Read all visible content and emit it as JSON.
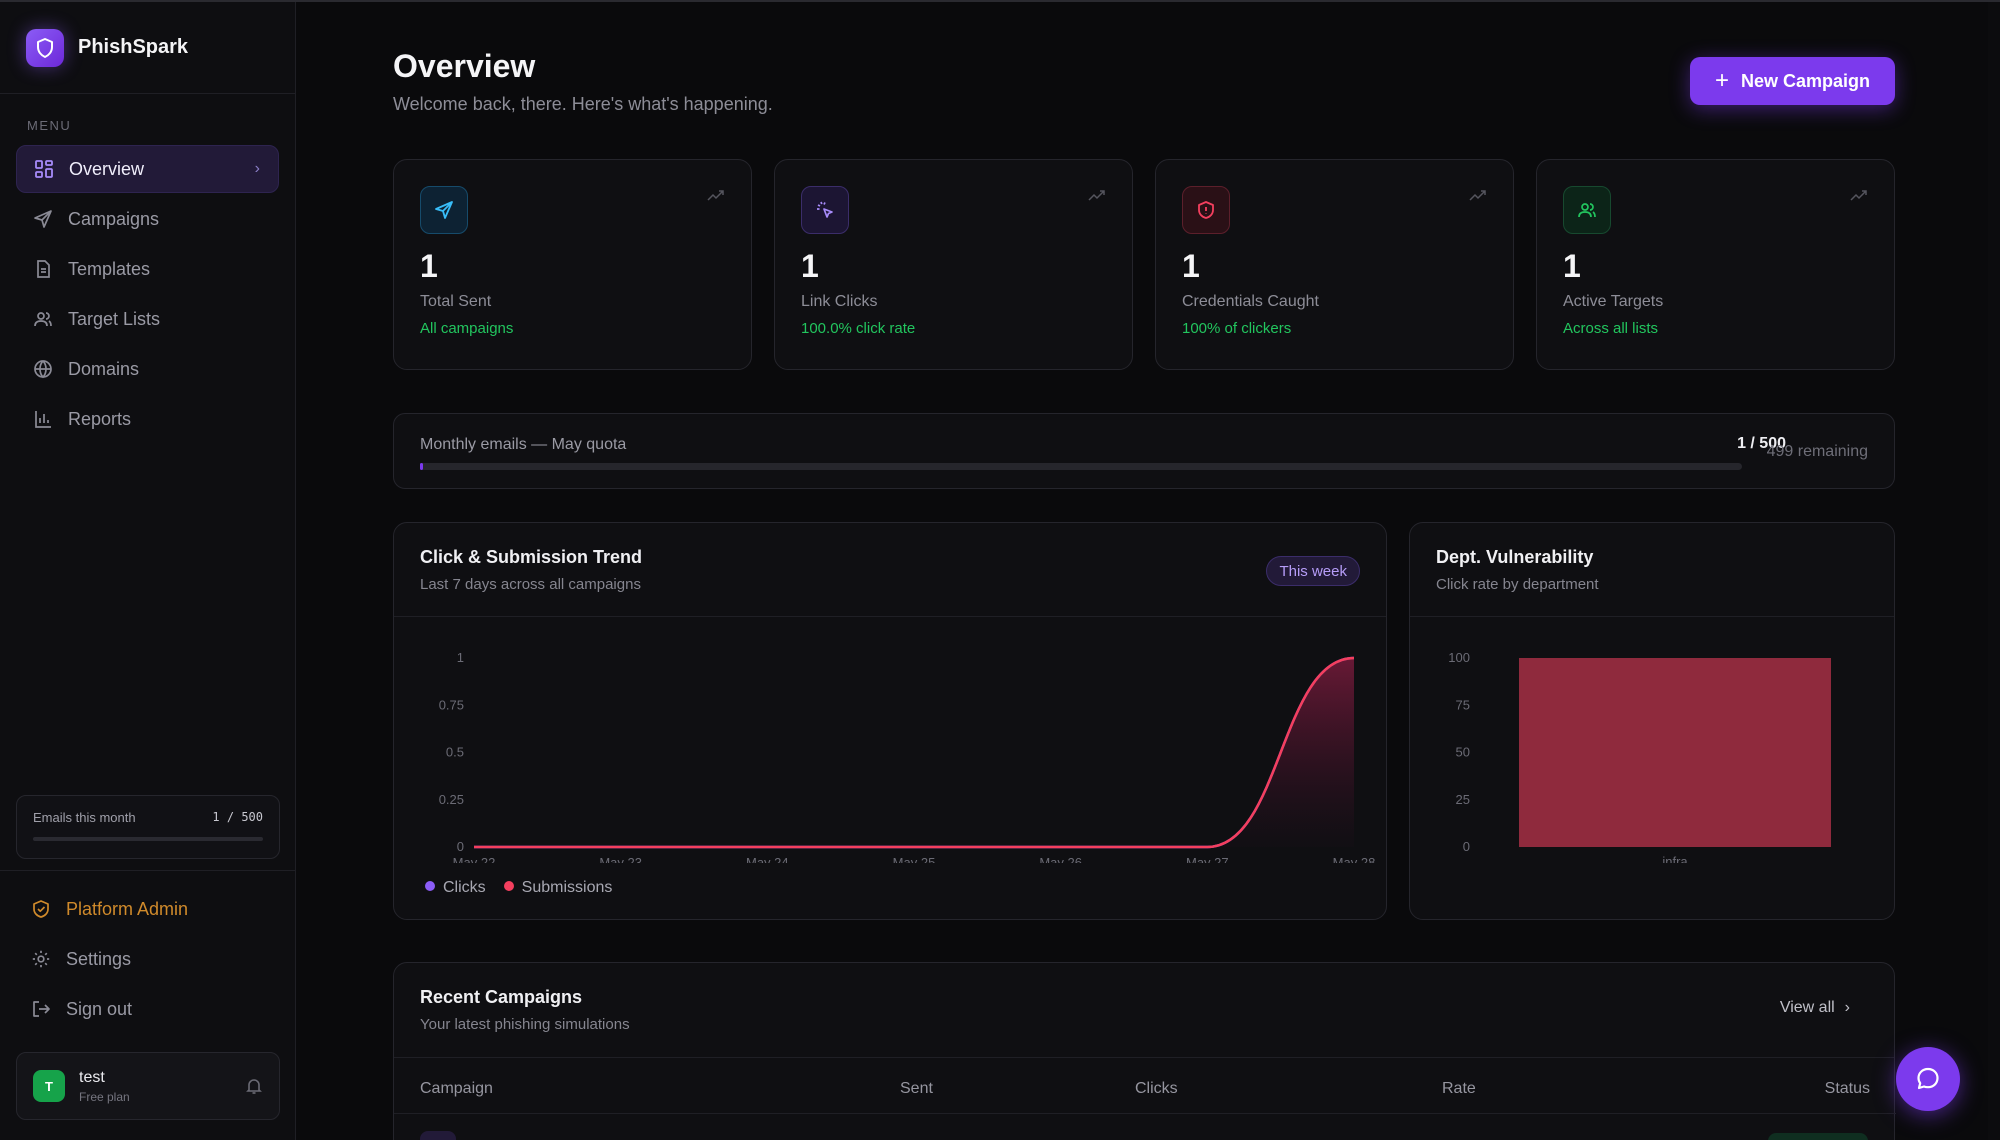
{
  "brand": {
    "name": "PhishSpark"
  },
  "sidebar": {
    "menu_caption": "MENU",
    "items": [
      {
        "label": "Overview",
        "icon": "grid-icon"
      },
      {
        "label": "Campaigns",
        "icon": "send-icon"
      },
      {
        "label": "Templates",
        "icon": "file-icon"
      },
      {
        "label": "Target Lists",
        "icon": "users-icon"
      },
      {
        "label": "Domains",
        "icon": "globe-icon"
      },
      {
        "label": "Reports",
        "icon": "bar-chart-icon"
      }
    ],
    "emails_label": "Emails this month",
    "emails_value": "1 / 500",
    "emails_progress": 0.002,
    "platform_admin": "Platform Admin",
    "settings": "Settings",
    "sign_out": "Sign out",
    "user": {
      "initial": "T",
      "name": "test",
      "plan": "Free plan"
    }
  },
  "header": {
    "title": "Overview",
    "subtitle": "Welcome back, there. Here's what's happening.",
    "new_campaign": "New Campaign"
  },
  "stats": [
    {
      "value": "1",
      "label": "Total Sent",
      "sub": "All campaigns",
      "icon": "send-icon",
      "color": "#38bdf8"
    },
    {
      "value": "1",
      "label": "Link Clicks",
      "sub": "100.0% click rate",
      "icon": "cursor-click-icon",
      "color": "#a78bfa"
    },
    {
      "value": "1",
      "label": "Credentials Caught",
      "sub": "100% of clickers",
      "icon": "shield-alert-icon",
      "color": "#f43f5e"
    },
    {
      "value": "1",
      "label": "Active Targets",
      "sub": "Across all lists",
      "icon": "users-icon",
      "color": "#22c55e"
    }
  ],
  "quota": {
    "label": "Monthly emails — May quota",
    "count": "1 / 500",
    "remaining": "499 remaining",
    "progress": 0.002
  },
  "trend": {
    "title": "Click & Submission Trend",
    "subtitle": "Last 7 days across all campaigns",
    "badge": "This week",
    "legend": [
      "Clicks",
      "Submissions"
    ]
  },
  "dept": {
    "title": "Dept. Vulnerability",
    "subtitle": "Click rate by department"
  },
  "recent": {
    "title": "Recent Campaigns",
    "subtitle": "Your latest phishing simulations",
    "view_all": "View all",
    "columns": [
      "Campaign",
      "Sent",
      "Clicks",
      "Rate",
      "Status"
    ]
  },
  "chart_data": [
    {
      "type": "area",
      "categories": [
        "May 22",
        "May 23",
        "May 24",
        "May 25",
        "May 26",
        "May 27",
        "May 28"
      ],
      "yticks": [
        "0",
        "0.25",
        "0.5",
        "0.75",
        "1"
      ],
      "ylim": [
        0,
        1
      ],
      "series": [
        {
          "name": "Clicks",
          "color": "#8b5cf6",
          "values": [
            0,
            0,
            0,
            0,
            0,
            0,
            1
          ]
        },
        {
          "name": "Submissions",
          "color": "#f43f5e",
          "values": [
            0,
            0,
            0,
            0,
            0,
            0,
            1
          ]
        }
      ]
    },
    {
      "type": "bar",
      "categories": [
        "infra"
      ],
      "values": [
        100
      ],
      "yticks": [
        "0",
        "25",
        "50",
        "75",
        "100"
      ],
      "ylim": [
        0,
        100
      ],
      "color": "#8f2a3d"
    }
  ]
}
